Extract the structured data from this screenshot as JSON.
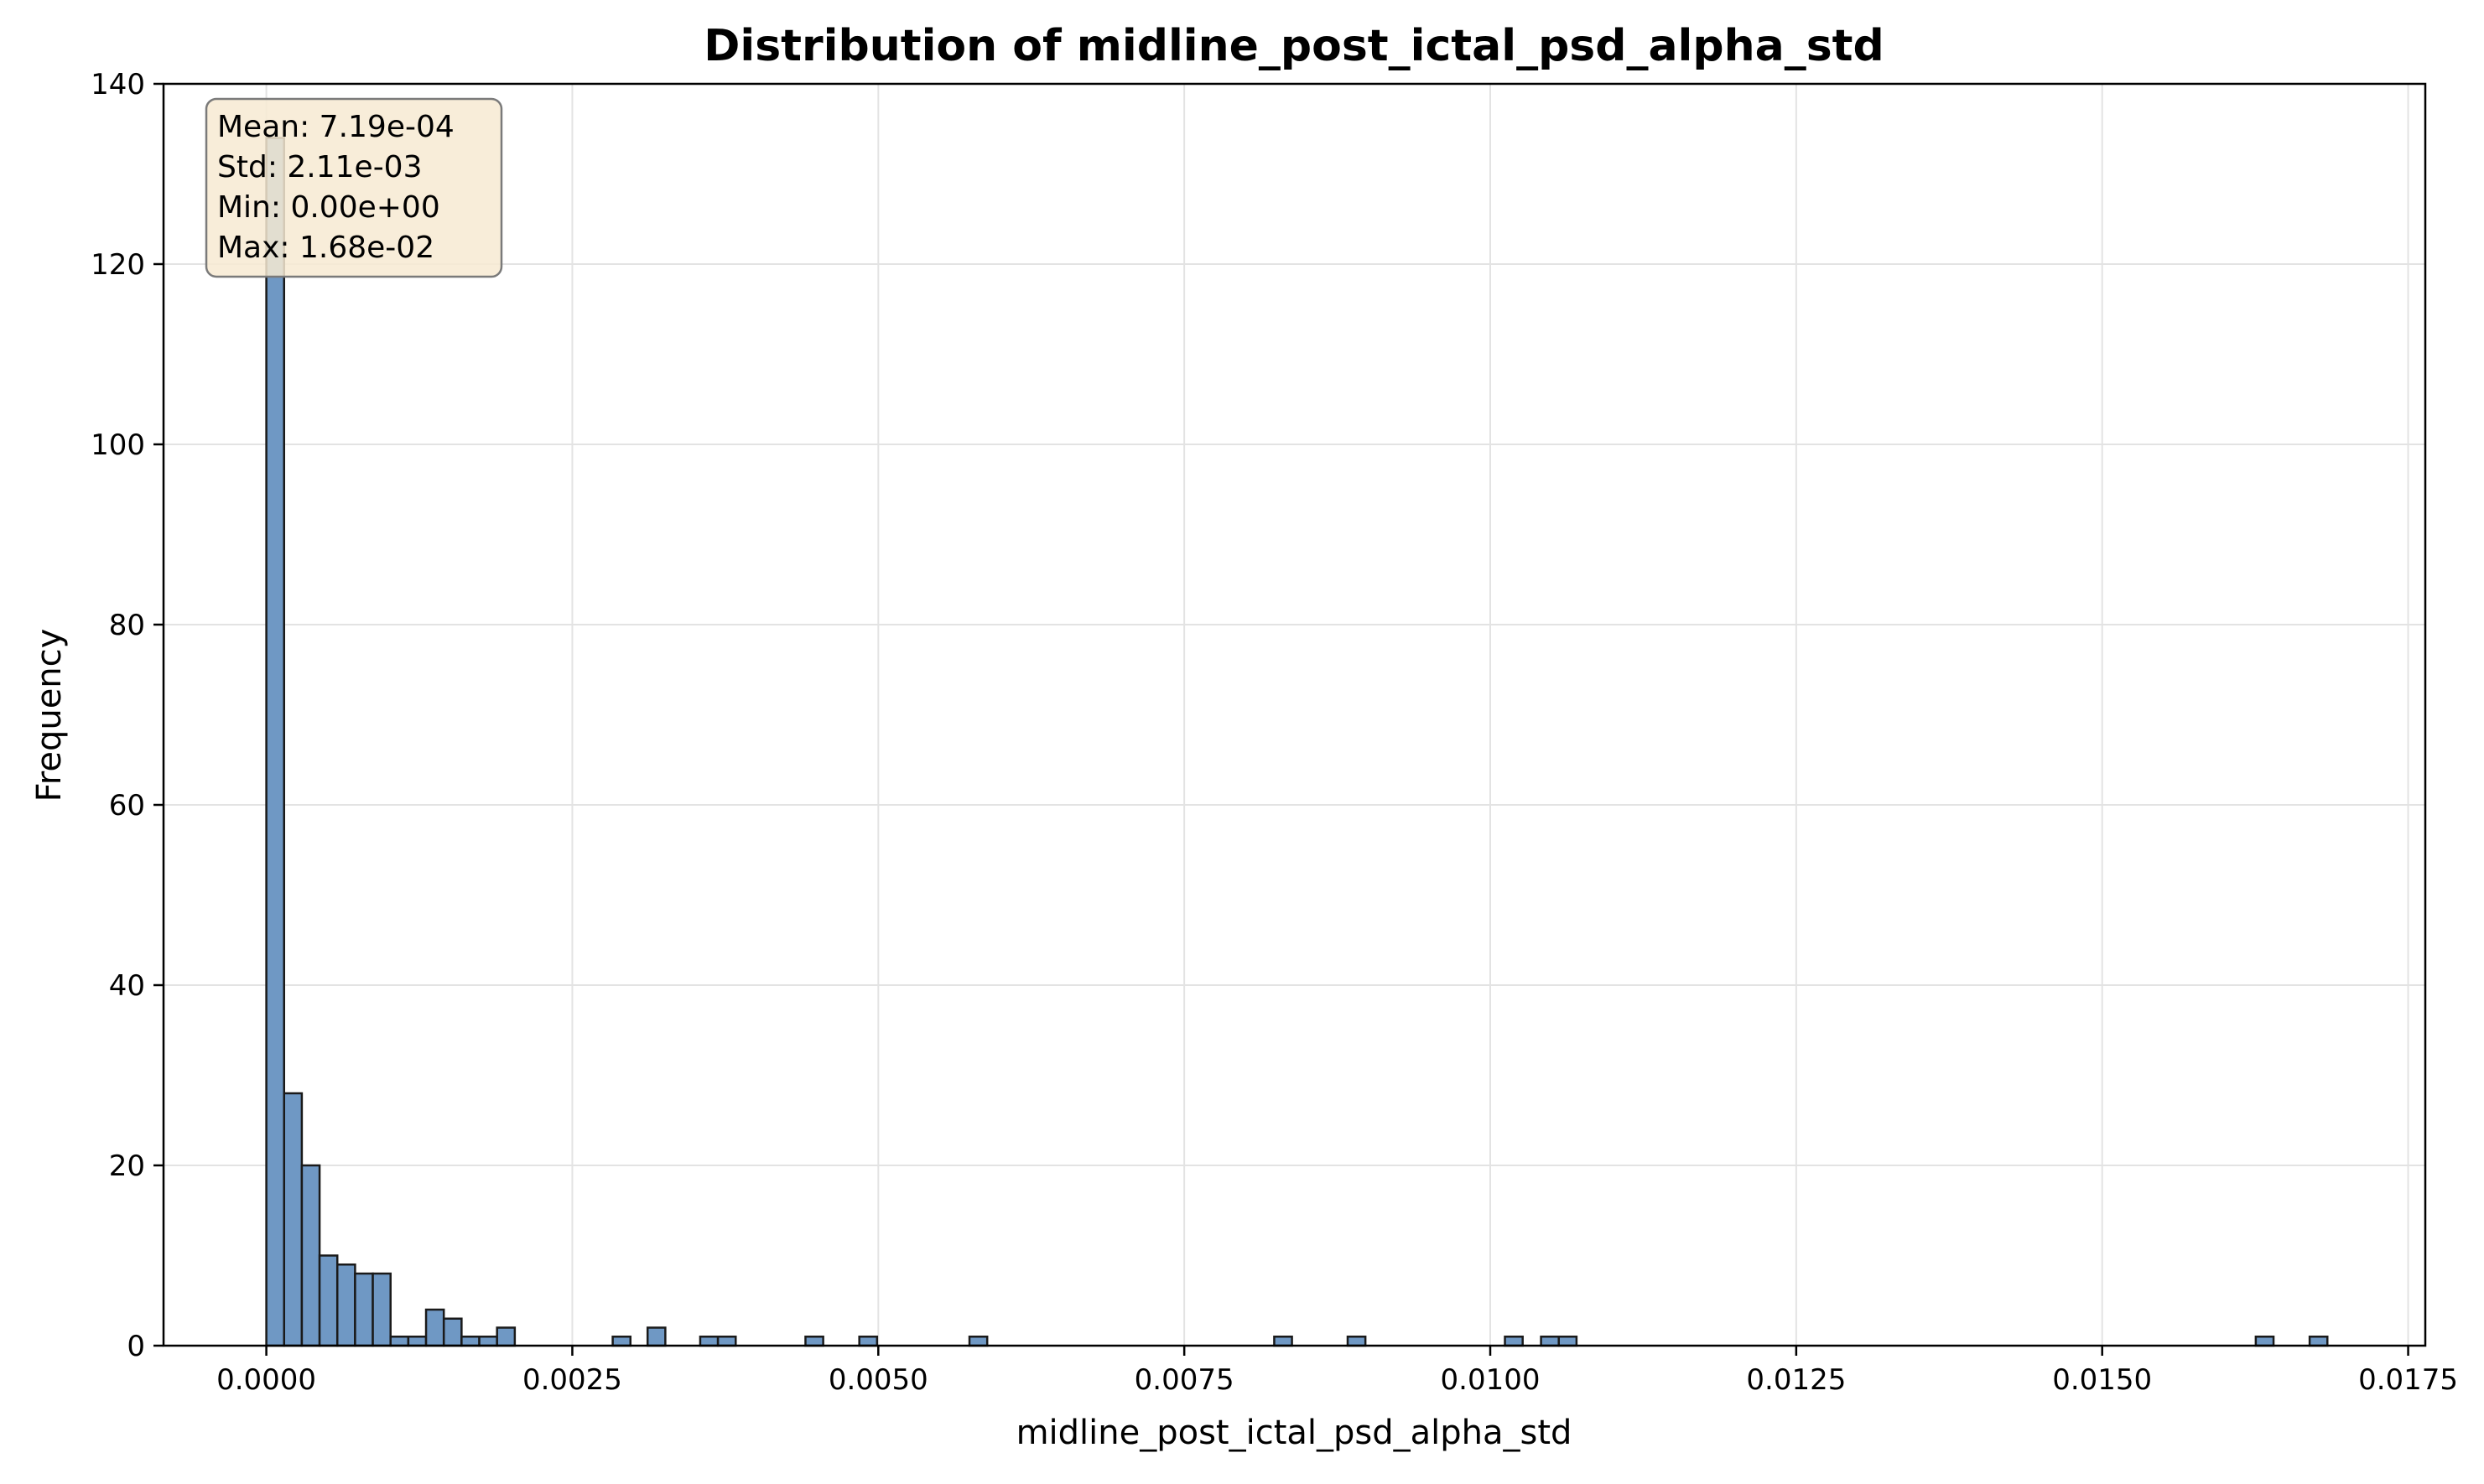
{
  "chart_data": {
    "type": "bar",
    "subtype": "histogram",
    "title": "Distribution of midline_post_ictal_psd_alpha_std",
    "xlabel": "midline_post_ictal_psd_alpha_std",
    "ylabel": "Frequency",
    "xlim": [
      -0.00084,
      0.01764
    ],
    "ylim": [
      0,
      140
    ],
    "grid": true,
    "bin_width": 0.000145,
    "x_ticks": [
      0.0,
      0.0025,
      0.005,
      0.0075,
      0.01,
      0.0125,
      0.015,
      0.0175
    ],
    "x_tick_labels": [
      "0.0000",
      "0.0025",
      "0.0050",
      "0.0075",
      "0.0100",
      "0.0125",
      "0.0150",
      "0.0175"
    ],
    "y_ticks": [
      0,
      20,
      40,
      60,
      80,
      100,
      120,
      140
    ],
    "y_tick_labels": [
      "0",
      "20",
      "40",
      "60",
      "80",
      "100",
      "120",
      "140"
    ],
    "bins": [
      {
        "x": 0.0,
        "count": 134
      },
      {
        "x": 0.000145,
        "count": 28
      },
      {
        "x": 0.00029,
        "count": 20
      },
      {
        "x": 0.000435,
        "count": 10
      },
      {
        "x": 0.00058,
        "count": 9
      },
      {
        "x": 0.000725,
        "count": 8
      },
      {
        "x": 0.00087,
        "count": 8
      },
      {
        "x": 0.001015,
        "count": 1
      },
      {
        "x": 0.00116,
        "count": 1
      },
      {
        "x": 0.001305,
        "count": 4
      },
      {
        "x": 0.00145,
        "count": 3
      },
      {
        "x": 0.001595,
        "count": 1
      },
      {
        "x": 0.00174,
        "count": 1
      },
      {
        "x": 0.001885,
        "count": 2
      },
      {
        "x": 0.00283,
        "count": 1
      },
      {
        "x": 0.003115,
        "count": 2
      },
      {
        "x": 0.003545,
        "count": 1
      },
      {
        "x": 0.00369,
        "count": 1
      },
      {
        "x": 0.004405,
        "count": 1
      },
      {
        "x": 0.004845,
        "count": 1
      },
      {
        "x": 0.005745,
        "count": 1
      },
      {
        "x": 0.008235,
        "count": 1
      },
      {
        "x": 0.008835,
        "count": 1
      },
      {
        "x": 0.01012,
        "count": 1
      },
      {
        "x": 0.010415,
        "count": 1
      },
      {
        "x": 0.01056,
        "count": 1
      },
      {
        "x": 0.016255,
        "count": 1
      },
      {
        "x": 0.016695,
        "count": 1
      }
    ],
    "bar_color": "#6f98c4",
    "bar_edge_color": "#1a1a1a",
    "stats_box": {
      "lines": [
        "Mean: 7.19e-04",
        "Std: 2.11e-03",
        "Min: 0.00e+00",
        "Max: 1.68e-02"
      ],
      "background": "#f7ead2",
      "border": "#7a7a7a"
    }
  }
}
